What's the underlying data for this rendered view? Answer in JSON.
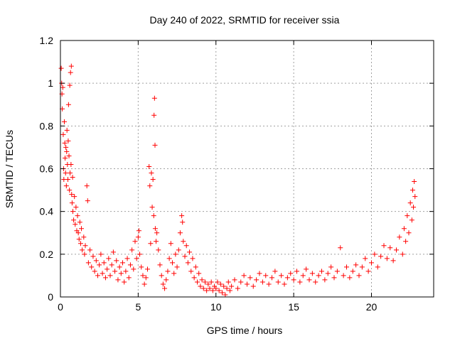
{
  "chart_data": {
    "type": "scatter",
    "title": "Day 240 of 2022, SRMTID for receiver ssia",
    "xlabel": "GPS time / hours",
    "ylabel": "SRMTID / TECUs",
    "xlim": [
      0,
      24
    ],
    "ylim": [
      0,
      1.2
    ],
    "xticks": [
      0,
      5,
      10,
      15,
      20
    ],
    "xtick_labels": [
      "0",
      "5",
      "10",
      "15",
      "20"
    ],
    "yticks": [
      0,
      0.2,
      0.4,
      0.6,
      0.8,
      1,
      1.2
    ],
    "ytick_labels": [
      "0",
      "0.2",
      "0.4",
      "0.6",
      "0.8",
      "1",
      "1.2"
    ],
    "grid": true,
    "marker": "plus",
    "color": "#ff0000",
    "series": [
      {
        "name": "SRMTID",
        "points": [
          [
            0.05,
            1.07
          ],
          [
            0.08,
            1.0
          ],
          [
            0.1,
            0.95
          ],
          [
            0.12,
            0.88
          ],
          [
            0.15,
            0.98
          ],
          [
            0.18,
            0.76
          ],
          [
            0.2,
            0.6
          ],
          [
            0.22,
            0.55
          ],
          [
            0.25,
            0.82
          ],
          [
            0.28,
            0.72
          ],
          [
            0.3,
            0.65
          ],
          [
            0.33,
            0.58
          ],
          [
            0.35,
            0.7
          ],
          [
            0.38,
            0.52
          ],
          [
            0.4,
            0.68
          ],
          [
            0.42,
            0.78
          ],
          [
            0.45,
            0.62
          ],
          [
            0.48,
            0.55
          ],
          [
            0.5,
            0.73
          ],
          [
            0.52,
            0.9
          ],
          [
            0.55,
            0.66
          ],
          [
            0.58,
            0.5
          ],
          [
            0.6,
            0.99
          ],
          [
            0.62,
            0.58
          ],
          [
            0.65,
            1.05
          ],
          [
            0.68,
            0.62
          ],
          [
            0.7,
            1.08
          ],
          [
            0.72,
            0.48
          ],
          [
            0.75,
            0.44
          ],
          [
            0.78,
            0.56
          ],
          [
            0.8,
            0.4
          ],
          [
            0.85,
            0.36
          ],
          [
            0.9,
            0.47
          ],
          [
            0.95,
            0.34
          ],
          [
            1.0,
            0.42
          ],
          [
            1.05,
            0.31
          ],
          [
            1.1,
            0.38
          ],
          [
            1.15,
            0.3
          ],
          [
            1.2,
            0.27
          ],
          [
            1.25,
            0.35
          ],
          [
            1.3,
            0.25
          ],
          [
            1.35,
            0.32
          ],
          [
            1.4,
            0.22
          ],
          [
            1.5,
            0.28
          ],
          [
            1.55,
            0.2
          ],
          [
            1.6,
            0.24
          ],
          [
            1.7,
            0.52
          ],
          [
            1.75,
            0.45
          ],
          [
            1.8,
            0.16
          ],
          [
            1.9,
            0.22
          ],
          [
            2.0,
            0.14
          ],
          [
            2.1,
            0.19
          ],
          [
            2.2,
            0.12
          ],
          [
            2.3,
            0.17
          ],
          [
            2.4,
            0.1
          ],
          [
            2.5,
            0.15
          ],
          [
            2.6,
            0.2
          ],
          [
            2.7,
            0.11
          ],
          [
            2.8,
            0.16
          ],
          [
            2.9,
            0.09
          ],
          [
            3.0,
            0.13
          ],
          [
            3.1,
            0.18
          ],
          [
            3.2,
            0.1
          ],
          [
            3.3,
            0.15
          ],
          [
            3.4,
            0.21
          ],
          [
            3.5,
            0.12
          ],
          [
            3.6,
            0.17
          ],
          [
            3.7,
            0.08
          ],
          [
            3.8,
            0.14
          ],
          [
            3.9,
            0.11
          ],
          [
            4.0,
            0.16
          ],
          [
            4.1,
            0.07
          ],
          [
            4.2,
            0.12
          ],
          [
            4.3,
            0.18
          ],
          [
            4.4,
            0.09
          ],
          [
            4.5,
            0.15
          ],
          [
            4.6,
            0.22
          ],
          [
            4.7,
            0.13
          ],
          [
            4.8,
            0.26
          ],
          [
            4.9,
            0.18
          ],
          [
            5.0,
            0.28
          ],
          [
            5.05,
            0.31
          ],
          [
            5.1,
            0.2
          ],
          [
            5.2,
            0.14
          ],
          [
            5.3,
            0.1
          ],
          [
            5.4,
            0.06
          ],
          [
            5.5,
            0.09
          ],
          [
            5.6,
            0.13
          ],
          [
            5.7,
            0.61
          ],
          [
            5.75,
            0.52
          ],
          [
            5.8,
            0.25
          ],
          [
            5.85,
            0.58
          ],
          [
            5.9,
            0.42
          ],
          [
            5.95,
            0.55
          ],
          [
            6.0,
            0.38
          ],
          [
            6.02,
            0.85
          ],
          [
            6.05,
            0.93
          ],
          [
            6.08,
            0.71
          ],
          [
            6.1,
            0.32
          ],
          [
            6.15,
            0.26
          ],
          [
            6.2,
            0.3
          ],
          [
            6.3,
            0.22
          ],
          [
            6.4,
            0.15
          ],
          [
            6.5,
            0.1
          ],
          [
            6.6,
            0.06
          ],
          [
            6.7,
            0.04
          ],
          [
            6.8,
            0.08
          ],
          [
            6.9,
            0.12
          ],
          [
            7.0,
            0.18
          ],
          [
            7.1,
            0.25
          ],
          [
            7.2,
            0.16
          ],
          [
            7.3,
            0.11
          ],
          [
            7.4,
            0.2
          ],
          [
            7.5,
            0.14
          ],
          [
            7.6,
            0.22
          ],
          [
            7.7,
            0.3
          ],
          [
            7.8,
            0.38
          ],
          [
            7.85,
            0.35
          ],
          [
            7.9,
            0.26
          ],
          [
            8.0,
            0.19
          ],
          [
            8.1,
            0.24
          ],
          [
            8.2,
            0.16
          ],
          [
            8.3,
            0.21
          ],
          [
            8.4,
            0.12
          ],
          [
            8.5,
            0.18
          ],
          [
            8.6,
            0.09
          ],
          [
            8.7,
            0.14
          ],
          [
            8.8,
            0.07
          ],
          [
            8.9,
            0.11
          ],
          [
            9.0,
            0.05
          ],
          [
            9.1,
            0.08
          ],
          [
            9.2,
            0.04
          ],
          [
            9.3,
            0.07
          ],
          [
            9.4,
            0.03
          ],
          [
            9.5,
            0.06
          ],
          [
            9.6,
            0.04
          ],
          [
            9.7,
            0.07
          ],
          [
            9.8,
            0.03
          ],
          [
            9.9,
            0.05
          ],
          [
            10.0,
            0.04
          ],
          [
            10.1,
            0.07
          ],
          [
            10.2,
            0.03
          ],
          [
            10.3,
            0.06
          ],
          [
            10.4,
            0.02
          ],
          [
            10.5,
            0.05
          ],
          [
            10.6,
            0.01
          ],
          [
            10.7,
            0.04
          ],
          [
            10.8,
            0.07
          ],
          [
            10.9,
            0.03
          ],
          [
            11.0,
            0.05
          ],
          [
            11.2,
            0.08
          ],
          [
            11.4,
            0.04
          ],
          [
            11.6,
            0.07
          ],
          [
            11.8,
            0.1
          ],
          [
            12.0,
            0.06
          ],
          [
            12.2,
            0.09
          ],
          [
            12.4,
            0.05
          ],
          [
            12.6,
            0.08
          ],
          [
            12.8,
            0.11
          ],
          [
            13.0,
            0.07
          ],
          [
            13.2,
            0.1
          ],
          [
            13.4,
            0.06
          ],
          [
            13.6,
            0.09
          ],
          [
            13.8,
            0.12
          ],
          [
            14.0,
            0.07
          ],
          [
            14.2,
            0.1
          ],
          [
            14.4,
            0.06
          ],
          [
            14.6,
            0.09
          ],
          [
            14.8,
            0.11
          ],
          [
            15.0,
            0.08
          ],
          [
            15.2,
            0.12
          ],
          [
            15.4,
            0.07
          ],
          [
            15.6,
            0.1
          ],
          [
            15.8,
            0.13
          ],
          [
            16.0,
            0.08
          ],
          [
            16.2,
            0.11
          ],
          [
            16.4,
            0.07
          ],
          [
            16.6,
            0.1
          ],
          [
            16.8,
            0.12
          ],
          [
            17.0,
            0.08
          ],
          [
            17.2,
            0.11
          ],
          [
            17.4,
            0.14
          ],
          [
            17.6,
            0.09
          ],
          [
            17.8,
            0.12
          ],
          [
            18.0,
            0.23
          ],
          [
            18.2,
            0.1
          ],
          [
            18.4,
            0.14
          ],
          [
            18.6,
            0.09
          ],
          [
            18.8,
            0.12
          ],
          [
            19.0,
            0.15
          ],
          [
            19.2,
            0.1
          ],
          [
            19.4,
            0.14
          ],
          [
            19.6,
            0.18
          ],
          [
            19.8,
            0.12
          ],
          [
            20.0,
            0.16
          ],
          [
            20.2,
            0.2
          ],
          [
            20.4,
            0.14
          ],
          [
            20.6,
            0.19
          ],
          [
            20.8,
            0.24
          ],
          [
            21.0,
            0.18
          ],
          [
            21.2,
            0.23
          ],
          [
            21.4,
            0.17
          ],
          [
            21.6,
            0.22
          ],
          [
            21.8,
            0.28
          ],
          [
            22.0,
            0.2
          ],
          [
            22.1,
            0.32
          ],
          [
            22.2,
            0.26
          ],
          [
            22.3,
            0.38
          ],
          [
            22.4,
            0.3
          ],
          [
            22.5,
            0.44
          ],
          [
            22.6,
            0.36
          ],
          [
            22.65,
            0.5
          ],
          [
            22.7,
            0.42
          ],
          [
            22.75,
            0.54
          ],
          [
            22.8,
            0.47
          ]
        ]
      }
    ]
  }
}
